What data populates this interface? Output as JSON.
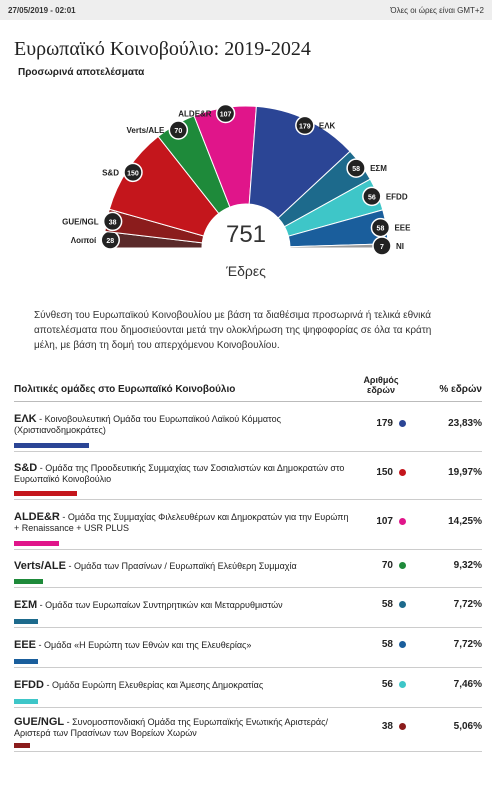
{
  "header": {
    "timestamp": "27/05/2019 - 02:01",
    "timezone": "Όλες οι ώρες είναι GMT+2"
  },
  "chart_data": {
    "type": "parliament",
    "title": "Ευρωπαϊκό Κοινοβούλιο: 2019-2024",
    "subtitle": "Προσωρινά αποτελέσματα",
    "total": 751,
    "total_label": "Έδρες",
    "categories": [
      "Λοιποί",
      "GUE/NGL",
      "S&D",
      "Verts/ALE",
      "ALDE&R",
      "ΕΛΚ",
      "ΕΣΜ",
      "EFDD",
      "EEE",
      "NI"
    ],
    "values": [
      28,
      38,
      150,
      70,
      107,
      179,
      58,
      56,
      58,
      7
    ],
    "colors": [
      "#5a2a2a",
      "#8b1c1c",
      "#c4161c",
      "#1e8a3a",
      "#e0158a",
      "#2b4595",
      "#1d6a8c",
      "#3ec6c8",
      "#1a5e9c",
      "#9a9a9a"
    ]
  },
  "description": "Σύνθεση του Ευρωπαϊκού Κοινοβουλίου με βάση τα διαθέσιμα προσωρινά ή τελικά εθνικά αποτελέσματα που δημοσιεύονται μετά την ολοκλήρωση της ψηφοφορίας σε όλα τα κράτη μέλη, με βάση τη δομή του απερχόμενου Κοινοβουλίου.",
  "table": {
    "headers": [
      "Πολιτικές ομάδες στο Ευρωπαϊκό Κοινοβούλιο",
      "Αριθμός εδρών",
      "% εδρών"
    ],
    "rows": [
      {
        "name": "ΕΛΚ",
        "desc": " - Κοινοβουλευτική Ομάδα του Ευρωπαϊκού Λαϊκού Κόμματος (Χριστιανοδημοκράτες)",
        "seats": 179,
        "pct": "23,83%",
        "color": "#2b4595"
      },
      {
        "name": "S&D",
        "desc": " - Ομάδα της Προοδευτικής Συμμαχίας των Σοσιαλιστών και Δημοκρατών στο Ευρωπαϊκό Κοινοβούλιο",
        "seats": 150,
        "pct": "19,97%",
        "color": "#c4161c"
      },
      {
        "name": "ALDE&R",
        "desc": " - Ομάδα της Συμμαχίας Φιλελευθέρων και Δημοκρατών για την Ευρώπη + Renaissance + USR PLUS",
        "seats": 107,
        "pct": "14,25%",
        "color": "#e0158a"
      },
      {
        "name": "Verts/ALE",
        "desc": " - Ομάδα των Πρασίνων / Ευρωπαϊκή Ελεύθερη Συμμαχία",
        "seats": 70,
        "pct": "9,32%",
        "color": "#1e8a3a"
      },
      {
        "name": "ΕΣΜ",
        "desc": " - Ομάδα των Ευρωπαίων Συντηρητικών και Μεταρρυθμιστών",
        "seats": 58,
        "pct": "7,72%",
        "color": "#1d6a8c"
      },
      {
        "name": "EEE",
        "desc": " - Ομάδα «Η Ευρώπη των Εθνών και της Ελευθερίας»",
        "seats": 58,
        "pct": "7,72%",
        "color": "#1a5e9c"
      },
      {
        "name": "EFDD",
        "desc": " - Ομάδα Ευρώπη Ελευθερίας και Άμεσης Δημοκρατίας",
        "seats": 56,
        "pct": "7,46%",
        "color": "#3ec6c8"
      },
      {
        "name": "GUE/NGL",
        "desc": " - Συνομοσπονδιακή Ομάδα της Ευρωπαϊκής Ενωτικής Αριστεράς/Αριστερά των Πρασίνων των Βορείων Χωρών",
        "seats": 38,
        "pct": "5,06%",
        "color": "#8b1c1c"
      }
    ]
  }
}
